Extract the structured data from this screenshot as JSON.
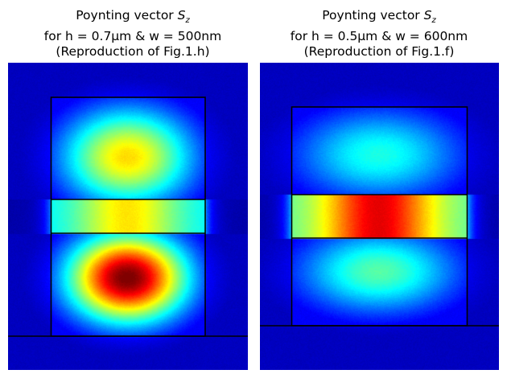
{
  "chart_data": [
    {
      "type": "heatmap",
      "title_line1": "Poynting vector",
      "title_symbol": "S",
      "title_subscript": "z",
      "title_line2": "for h = 0.7µm & w = 500nm",
      "title_line3": "(Reproduction of Fig.1.h)",
      "colormap": "jet",
      "relative_intensity": {
        "upper_lobe": 0.62,
        "slot_center": 0.65,
        "slot_edges": 0.35,
        "lower_lobe": 0.97
      }
    },
    {
      "type": "heatmap",
      "title_line1": "Poynting vector",
      "title_symbol": "S",
      "title_subscript": "z",
      "title_line2": "for h = 0.5µm & w = 600nm",
      "title_line3": "(Reproduction of Fig.1.f)",
      "colormap": "jet",
      "relative_intensity": {
        "upper_lobe": 0.36,
        "slot_center": 0.9,
        "slot_edges": 0.45,
        "lower_lobe": 0.42
      }
    }
  ]
}
